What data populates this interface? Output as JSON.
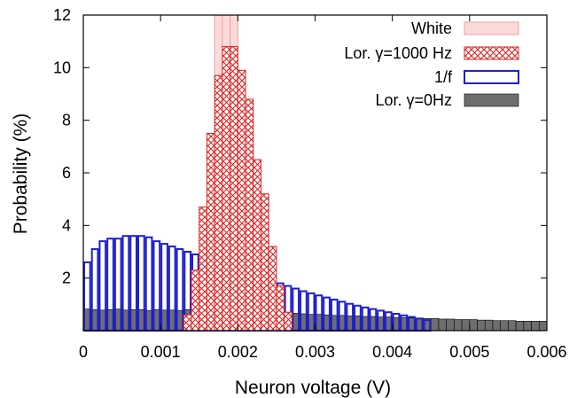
{
  "chart_data": {
    "type": "bar",
    "title": "",
    "xlabel": "Neuron voltage (V)",
    "ylabel": "Probability (%)",
    "xlim": [
      0,
      0.006
    ],
    "ylim": [
      0,
      12
    ],
    "grid": false,
    "legend_position": "top-right",
    "bin_width": 0.0001,
    "x_ticks": [
      "0",
      "0.001",
      "0.002",
      "0.003",
      "0.004",
      "0.005",
      "0.006"
    ],
    "x_tick_values": [
      0,
      0.001,
      0.002,
      0.003,
      0.004,
      0.005,
      0.006
    ],
    "y_ticks": [
      "2",
      "4",
      "6",
      "8",
      "10",
      "12"
    ],
    "y_tick_values": [
      2,
      4,
      6,
      8,
      10,
      12
    ],
    "series": [
      {
        "name": "White",
        "style": "light-pink-fill",
        "color": "#f2a0a0",
        "x": [
          0.0017,
          0.0018,
          0.0019
        ],
        "values": [
          12,
          12,
          12
        ]
      },
      {
        "name": "Lor. γ=1000 Hz",
        "style": "red-crosshatch",
        "color": "#e02020",
        "x": [
          0.0013,
          0.0014,
          0.0015,
          0.0016,
          0.0017,
          0.0018,
          0.0019,
          0.002,
          0.0021,
          0.0022,
          0.0023,
          0.0024,
          0.0025,
          0.0026
        ],
        "values": [
          0.6,
          2.3,
          4.7,
          7.5,
          9.7,
          10.8,
          10.8,
          9.9,
          8.8,
          6.5,
          5.2,
          3.2,
          1.7,
          0.7
        ]
      },
      {
        "name": "1/f",
        "style": "blue-outline",
        "color": "#1f1fd1",
        "x": [
          5e-05,
          0.00015,
          0.00025,
          0.00035,
          0.00045,
          0.00055,
          0.00065,
          0.00075,
          0.00085,
          0.00095,
          0.00105,
          0.00115,
          0.00125,
          0.00135,
          0.00145,
          0.00155,
          0.00165,
          0.00175,
          0.00185,
          0.00195,
          0.00205,
          0.00215,
          0.00225,
          0.00235,
          0.00245,
          0.00255,
          0.00265,
          0.00275,
          0.00285,
          0.00295,
          0.00305,
          0.00315,
          0.00325,
          0.00335,
          0.00345,
          0.00355,
          0.00365,
          0.00375,
          0.00385,
          0.00395,
          0.00405,
          0.00415,
          0.00425,
          0.00435,
          0.00445
        ],
        "values": [
          2.6,
          3.1,
          3.4,
          3.5,
          3.5,
          3.6,
          3.6,
          3.6,
          3.55,
          3.4,
          3.3,
          3.2,
          3.1,
          3.0,
          2.9,
          2.8,
          2.7,
          2.6,
          2.5,
          2.4,
          2.3,
          2.2,
          2.1,
          2.0,
          1.9,
          1.8,
          1.7,
          1.6,
          1.5,
          1.42,
          1.34,
          1.26,
          1.18,
          1.1,
          1.02,
          0.95,
          0.88,
          0.82,
          0.76,
          0.7,
          0.64,
          0.58,
          0.52,
          0.46,
          0.4
        ]
      },
      {
        "name": "Lor. γ=0Hz",
        "style": "gray-fill",
        "color": "#6e6e6e",
        "x": [
          5e-05,
          0.00015,
          0.00025,
          0.00035,
          0.00045,
          0.00055,
          0.00065,
          0.00075,
          0.00085,
          0.00095,
          0.00105,
          0.00115,
          0.00125,
          0.00135,
          0.00145,
          0.00155,
          0.00165,
          0.00175,
          0.00185,
          0.00195,
          0.00205,
          0.00215,
          0.00225,
          0.00235,
          0.00245,
          0.00255,
          0.00265,
          0.00275,
          0.00285,
          0.00295,
          0.00305,
          0.00315,
          0.00325,
          0.00335,
          0.00345,
          0.00355,
          0.00365,
          0.00375,
          0.00385,
          0.00395,
          0.00405,
          0.00415,
          0.00425,
          0.00435,
          0.00445,
          0.00455,
          0.00465,
          0.00475,
          0.00485,
          0.00495,
          0.00505,
          0.00515,
          0.00525,
          0.00535,
          0.00545,
          0.00555,
          0.00565,
          0.00575,
          0.00585,
          0.00595
        ],
        "values": [
          0.82,
          0.8,
          0.78,
          0.8,
          0.82,
          0.78,
          0.8,
          0.8,
          0.76,
          0.8,
          0.78,
          0.78,
          0.76,
          0.8,
          0.78,
          0.76,
          0.76,
          0.78,
          0.74,
          0.74,
          0.72,
          0.72,
          0.7,
          0.7,
          0.68,
          0.68,
          0.66,
          0.66,
          0.64,
          0.62,
          0.62,
          0.6,
          0.58,
          0.58,
          0.56,
          0.56,
          0.54,
          0.54,
          0.52,
          0.52,
          0.5,
          0.5,
          0.48,
          0.48,
          0.46,
          0.46,
          0.44,
          0.44,
          0.42,
          0.42,
          0.42,
          0.4,
          0.4,
          0.38,
          0.38,
          0.38,
          0.36,
          0.36,
          0.36,
          0.36
        ]
      }
    ]
  }
}
